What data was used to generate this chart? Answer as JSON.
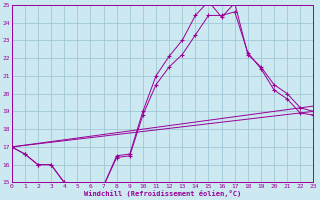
{
  "xlabel": "Windchill (Refroidissement éolien,°C)",
  "background_color": "#cce8f0",
  "grid_color": "#a0c8d8",
  "line_color": "#990099",
  "xlim": [
    0,
    23
  ],
  "ylim": [
    15,
    25
  ],
  "yticks": [
    15,
    16,
    17,
    18,
    19,
    20,
    21,
    22,
    23,
    24,
    25
  ],
  "xticks": [
    0,
    1,
    2,
    3,
    4,
    5,
    6,
    7,
    8,
    9,
    10,
    11,
    12,
    13,
    14,
    15,
    16,
    17,
    18,
    19,
    20,
    21,
    22,
    23
  ],
  "line1_x": [
    0,
    1,
    2,
    3,
    4,
    5,
    6,
    7,
    8,
    9,
    10,
    11,
    12,
    13,
    14,
    15,
    16,
    17,
    18,
    19,
    20,
    21,
    22,
    23
  ],
  "line1_y": [
    17.0,
    16.6,
    16.0,
    16.0,
    15.0,
    14.9,
    14.9,
    14.8,
    16.5,
    16.6,
    19.0,
    21.0,
    22.1,
    23.0,
    24.4,
    25.2,
    24.3,
    25.1,
    22.2,
    21.5,
    20.5,
    20.0,
    19.2,
    19.0
  ],
  "line2_x": [
    0,
    1,
    2,
    3,
    4,
    5,
    6,
    7,
    8,
    9,
    10,
    11,
    12,
    13,
    14,
    15,
    16,
    17,
    18,
    19,
    20,
    21,
    22,
    23
  ],
  "line2_y": [
    17.0,
    16.6,
    16.0,
    16.0,
    15.0,
    14.9,
    14.9,
    14.8,
    16.4,
    16.5,
    18.8,
    20.5,
    21.5,
    22.2,
    23.3,
    24.4,
    24.4,
    24.6,
    22.3,
    21.4,
    20.2,
    19.7,
    18.9,
    18.8
  ],
  "line3_x": [
    0,
    23
  ],
  "line3_y": [
    17.0,
    19.0
  ],
  "line4_x": [
    0,
    23
  ],
  "line4_y": [
    17.0,
    19.3
  ]
}
